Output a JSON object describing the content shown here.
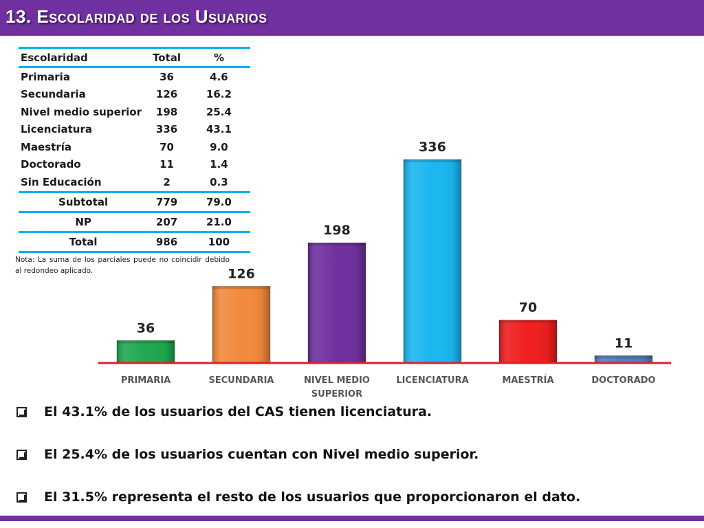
{
  "header": {
    "title": "13. Escolaridad de los Usuarios"
  },
  "table": {
    "headers": [
      "Escolaridad",
      "Total",
      "%"
    ],
    "rows": [
      [
        "Primaria",
        "36",
        "4.6"
      ],
      [
        "Secundaria",
        "126",
        "16.2"
      ],
      [
        "Nivel medio superior",
        "198",
        "25.4"
      ],
      [
        "Licenciatura",
        "336",
        "43.1"
      ],
      [
        "Maestría",
        "70",
        "9.0"
      ],
      [
        "Doctorado",
        "11",
        "1.4"
      ],
      [
        "Sin Educación",
        "2",
        "0.3"
      ]
    ],
    "subtotal": [
      "Subtotal",
      "779",
      "79.0"
    ],
    "np": [
      "NP",
      "207",
      "21.0"
    ],
    "total": [
      "Total",
      "986",
      "100"
    ]
  },
  "note": "Nota: La suma de los parciales puede no coincidir debido al redondeo aplicado.",
  "chart_data": {
    "type": "bar",
    "categories": [
      "PRIMARIA",
      "SECUNDARIA",
      "NIVEL MEDIO SUPERIOR",
      "LICENCIATURA",
      "MAESTRÍA",
      "DOCTORADO"
    ],
    "category_lines": [
      [
        "PRIMARIA"
      ],
      [
        "SECUNDARIA"
      ],
      [
        "NIVEL MEDIO",
        "SUPERIOR"
      ],
      [
        "LICENCIATURA"
      ],
      [
        "MAESTRÍA"
      ],
      [
        "DOCTORADO"
      ]
    ],
    "values": [
      36,
      126,
      198,
      336,
      70,
      11
    ],
    "colors": [
      "#1fa84f",
      "#f28a3c",
      "#7030a0",
      "#1ab7f0",
      "#f01e1e",
      "#4f81bd"
    ],
    "baseline_color": "#e0202e",
    "title": "",
    "xlabel": "",
    "ylabel": "",
    "ylim": [
      0,
      360
    ]
  },
  "bullets": [
    "El 43.1% de los usuarios del CAS tienen licenciatura.",
    "El 25.4% de los usuarios cuentan con Nivel medio superior.",
    "El  31.5% representa el resto de los usuarios que proporcionaron el dato."
  ]
}
